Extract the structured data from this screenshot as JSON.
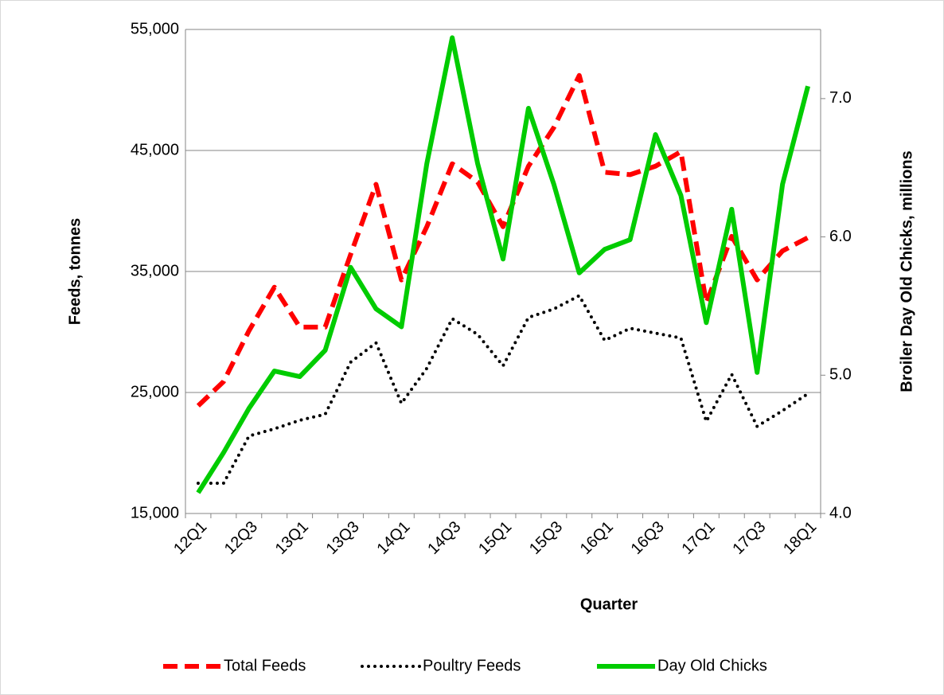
{
  "chart_data": {
    "type": "line",
    "x_label": "Quarter",
    "y_label": "Feeds, tonnes",
    "y2_label": "Broiler Day Old Chicks, millions",
    "categories": [
      "12Q1",
      null,
      "12Q3",
      null,
      "13Q1",
      null,
      "13Q3",
      null,
      "14Q1",
      null,
      "14Q3",
      null,
      "15Q1",
      null,
      "15Q3",
      null,
      "16Q1",
      null,
      "16Q3",
      null,
      "17Q1",
      null,
      "17Q3",
      null,
      "18Q1"
    ],
    "ylim": [
      15000,
      55000
    ],
    "yticks": [
      {
        "value": 15000,
        "label": "15,000"
      },
      {
        "value": 25000,
        "label": "25,000"
      },
      {
        "value": 35000,
        "label": "35,000"
      },
      {
        "value": 45000,
        "label": "45,000"
      },
      {
        "value": 55000,
        "label": "55,000"
      }
    ],
    "y2lim": [
      4,
      7.5
    ],
    "y2ticks": [
      {
        "value": 4,
        "label": "4.0"
      },
      {
        "value": 5,
        "label": "5.0"
      },
      {
        "value": 6,
        "label": "6.0"
      },
      {
        "value": 7,
        "label": "7.0"
      }
    ],
    "grid": true,
    "legend": "bottom",
    "series": [
      {
        "name": "Total Feeds",
        "color": "#ff0000",
        "style": "dashed",
        "axis": "y",
        "values": [
          23900,
          25900,
          30100,
          33700,
          30400,
          30400,
          36400,
          42200,
          34300,
          38700,
          43900,
          42400,
          38700,
          43700,
          46900,
          51200,
          43200,
          43000,
          43700,
          44900,
          32400,
          37900,
          34300,
          36700,
          37800
        ]
      },
      {
        "name": "Poultry Feeds",
        "color": "#000000",
        "style": "dotted",
        "axis": "y",
        "values": [
          17500,
          17500,
          21400,
          22000,
          22700,
          23200,
          27500,
          29100,
          24100,
          27000,
          31100,
          29800,
          27200,
          31200,
          31900,
          33000,
          29300,
          30300,
          29900,
          29500,
          22600,
          26500,
          22200,
          23500,
          24900
        ]
      },
      {
        "name": "Day Old Chicks",
        "color": "#00cc00",
        "style": "solid",
        "axis": "y2",
        "values": [
          4.15,
          4.44,
          4.76,
          5.03,
          4.99,
          5.18,
          5.78,
          5.48,
          5.35,
          6.53,
          7.44,
          6.53,
          5.84,
          6.93,
          6.38,
          5.74,
          5.91,
          5.98,
          6.74,
          6.3,
          5.38,
          6.2,
          5.02,
          6.38,
          7.09
        ]
      }
    ]
  }
}
